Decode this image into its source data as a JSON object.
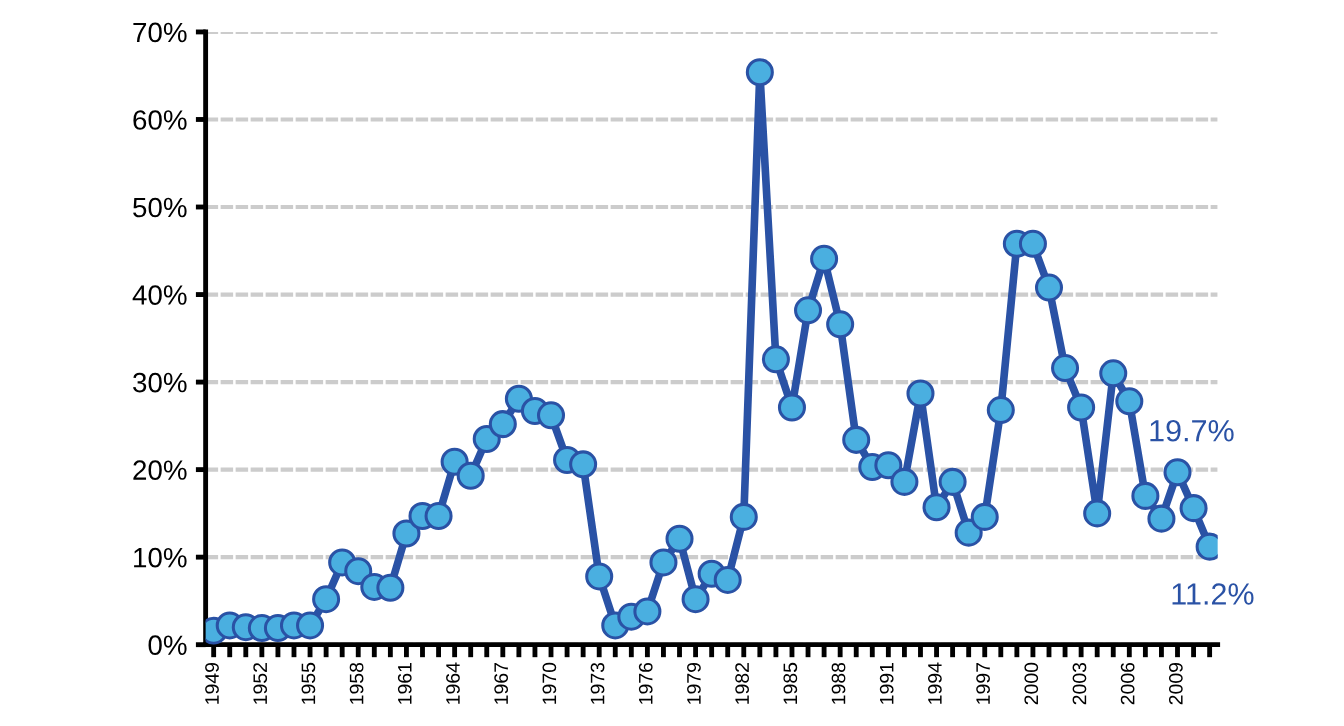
{
  "chart_data": {
    "type": "line",
    "categories": [
      "1949",
      null,
      null,
      "1952",
      null,
      null,
      "1955",
      null,
      null,
      "1958",
      null,
      null,
      "1961",
      null,
      null,
      "1964",
      null,
      null,
      "1967",
      null,
      null,
      "1970",
      null,
      null,
      "1973",
      null,
      null,
      "1976",
      null,
      null,
      "1979",
      null,
      null,
      "1982",
      null,
      null,
      "1985",
      null,
      null,
      "1988",
      null,
      null,
      "1991",
      null,
      null,
      "1994",
      null,
      null,
      "1997",
      null,
      null,
      "2000",
      null,
      null,
      "2003",
      null,
      null,
      "2006",
      null,
      null,
      "2009",
      null,
      null
    ],
    "series": [
      {
        "color": "#2a52a5",
        "colors": [
          "#4aafe0",
          "#4aafe0",
          "#4aafe0",
          "#4aafe0",
          "#4aafe0",
          "#4aafe0",
          "#4aafe0",
          "#4aafe0",
          "#4aafe0",
          "#4aafe0",
          "#4aafe0",
          "#4aafe0",
          "#4aafe0",
          "#4aafe0",
          "#4aafe0",
          "#4aafe0",
          "#4aafe0",
          "#4aafe0",
          "#4aafe0",
          "#4aafe0",
          "#4aafe0",
          "#4aafe0",
          "#4aafe0",
          "#4aafe0",
          "#4aafe0",
          "#4aafe0",
          "#4aafe0",
          "#4aafe0",
          "#4aafe0",
          "#4aafe0",
          "#4aafe0",
          "#4aafe0",
          "#4aafe0",
          "#4aafe0",
          "#4aafe0",
          "#4aafe0",
          "#4aafe0",
          "#4aafe0",
          "#4aafe0",
          "#4aafe0",
          "#4aafe0",
          "#4aafe0",
          "#4aafe0",
          "#4aafe0",
          "#4aafe0",
          "#4aafe0",
          "#4aafe0",
          "#4aafe0",
          "#4aafe0",
          "#4aafe0",
          "#4aafe0",
          "#4aafe0",
          "#4aafe0",
          "#4aafe0",
          "#4aafe0",
          "#4aafe0",
          "#4aafe0",
          "#4aafe0",
          "#4aafe0",
          "#4aafe0",
          "#4aafe0",
          "#4aafe0",
          "#4aafe0"
        ],
        "values": [
          1.6,
          2.2,
          2.0,
          1.9,
          1.9,
          2.2,
          2.2,
          5.2,
          9.4,
          8.4,
          6.6,
          6.5,
          12.7,
          14.7,
          14.7,
          20.9,
          19.3,
          23.5,
          25.2,
          28.1,
          26.7,
          26.2,
          21.1,
          20.6,
          7.8,
          2.2,
          3.2,
          3.8,
          9.4,
          12.1,
          5.2,
          8.1,
          7.4,
          14.6,
          65.4,
          32.6,
          27.1,
          38.2,
          44.1,
          36.6,
          23.4,
          20.3,
          20.5,
          18.6,
          28.7,
          15.7,
          18.6,
          12.8,
          14.6,
          26.8,
          45.8,
          45.8,
          40.8,
          31.6,
          27.1,
          15.0,
          31.0,
          27.8,
          17.0,
          14.4,
          19.7,
          15.6,
          11.2
        ],
        "value_labels": [
          null,
          null,
          null,
          null,
          null,
          null,
          null,
          null,
          null,
          null,
          null,
          null,
          null,
          null,
          null,
          null,
          null,
          null,
          null,
          null,
          null,
          null,
          null,
          null,
          null,
          null,
          null,
          null,
          null,
          null,
          null,
          null,
          null,
          null,
          null,
          null,
          null,
          null,
          null,
          null,
          null,
          null,
          null,
          null,
          null,
          null,
          null,
          null,
          null,
          null,
          null,
          null,
          null,
          null,
          null,
          null,
          null,
          null,
          null,
          null,
          "19.7%",
          null,
          "11.2%"
        ]
      }
    ],
    "ylim": [
      0,
      70
    ],
    "yticks": [
      {
        "value": 0,
        "label": "0%"
      },
      {
        "value": 10,
        "label": "10%"
      },
      {
        "value": 20,
        "label": "20%"
      },
      {
        "value": 30,
        "label": "30%"
      },
      {
        "value": 40,
        "label": "40%"
      },
      {
        "value": 50,
        "label": "50%"
      },
      {
        "value": 60,
        "label": "60%"
      },
      {
        "value": 70,
        "label": "70%"
      }
    ],
    "grid": "y",
    "marker": "circle",
    "line_style": "solid"
  }
}
